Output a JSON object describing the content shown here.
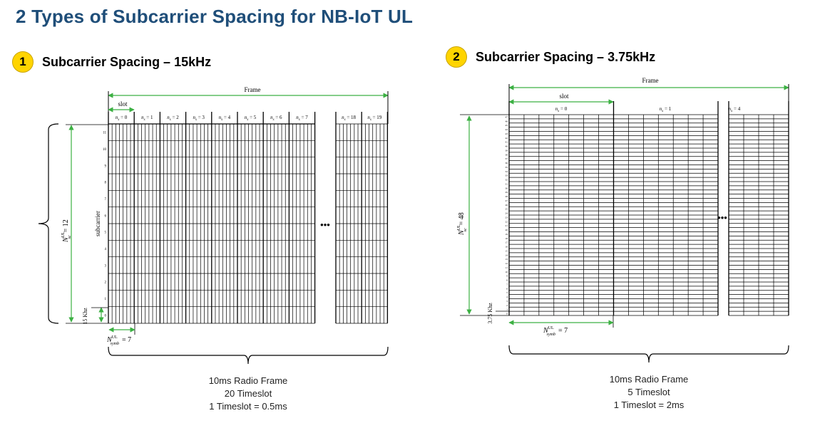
{
  "title": "2 Types of Subcarrier Spacing for NB-IoT UL",
  "left": {
    "badge": "1",
    "heading": "Subcarrier Spacing – 15kHz",
    "frame_label": "Frame",
    "slot_label": "slot",
    "slot_labels": [
      "n_s = 0",
      "n_s = 1",
      "n_s = 2",
      "n_s = 3",
      "n_s = 4",
      "n_s = 5",
      "n_s = 6",
      "n_s = 7",
      "n_s = 18",
      "n_s = 19"
    ],
    "y_tick_labels": [
      "11",
      "10",
      "9",
      "8",
      "7",
      "6",
      "5",
      "4",
      "3",
      "2",
      "1",
      "0"
    ],
    "axis_label": "subcarrier",
    "spacing_label": "15 Khz",
    "n_sc_label": "N_sc^UL = 12",
    "n_symb_label": "N_symb^UL = 7",
    "ellipsis": "•••",
    "caption": [
      "10ms Radio Frame",
      "20 Timeslot",
      "1 Timeslot = 0.5ms"
    ]
  },
  "right": {
    "badge": "2",
    "heading": "Subcarrier Spacing – 3.75kHz",
    "frame_label": "Frame",
    "slot_label": "slot",
    "slot_labels": [
      "n_s = 0",
      "n_s = 1",
      "n_s = 4"
    ],
    "y_tick_count": 48,
    "spacing_label": "3.75 Khz",
    "n_sc_label": "N_sc^UL = 48",
    "n_symb_label": "N_symb^UL = 7",
    "ellipsis": "•••",
    "caption": [
      "10ms Radio Frame",
      "5 Timeslot",
      "1 Timeslot = 2ms"
    ]
  },
  "colors": {
    "title": "#1f4e79",
    "badge": "#ffd400",
    "arrow": "#3cb043",
    "grid": "#000000"
  }
}
